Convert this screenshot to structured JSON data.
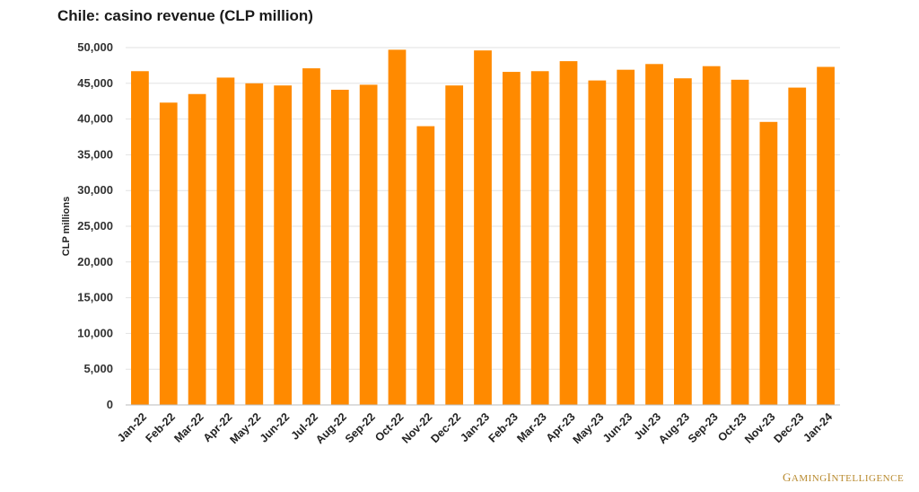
{
  "chart_data": {
    "type": "bar",
    "title": "Chile: casino revenue (CLP million)",
    "xlabel": "",
    "ylabel": "CLP millions",
    "ylim": [
      0,
      50000
    ],
    "yticks": [
      0,
      5000,
      10000,
      15000,
      20000,
      25000,
      30000,
      35000,
      40000,
      45000,
      50000
    ],
    "ytick_labels": [
      "0",
      "5,000",
      "10,000",
      "15,000",
      "20,000",
      "25,000",
      "30,000",
      "35,000",
      "40,000",
      "45,000",
      "50,000"
    ],
    "grid": true,
    "bar_color": "#ff8a00",
    "categories": [
      "Jan-22",
      "Feb-22",
      "Mar-22",
      "Apr-22",
      "May-22",
      "Jun-22",
      "Jul-22",
      "Aug-22",
      "Sep-22",
      "Oct-22",
      "Nov-22",
      "Dec-22",
      "Jan-23",
      "Feb-23",
      "Mar-23",
      "Apr-23",
      "May-23",
      "Jun-23",
      "Jul-23",
      "Aug-23",
      "Sep-23",
      "Oct-23",
      "Nov-23",
      "Dec-23",
      "Jan-24"
    ],
    "values": [
      46700,
      42300,
      43500,
      45800,
      45000,
      44700,
      47100,
      44100,
      44800,
      49700,
      39000,
      44700,
      49600,
      46600,
      46700,
      48100,
      45400,
      46900,
      47700,
      45700,
      47400,
      45500,
      39600,
      44400,
      47300
    ]
  },
  "logo_text": "GamingIntelligence"
}
